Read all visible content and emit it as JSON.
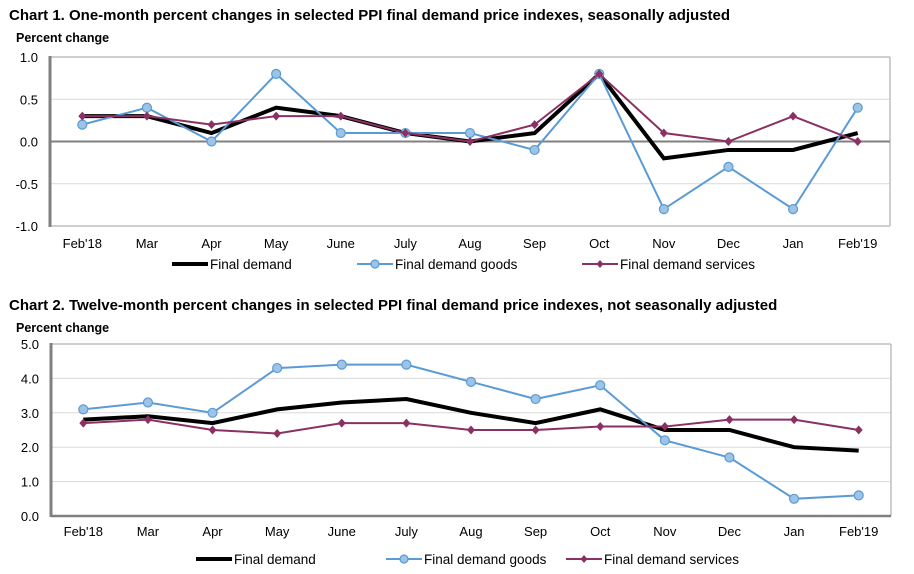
{
  "chart_data": [
    {
      "type": "line",
      "title": "Chart 1. One-month percent changes in selected PPI final demand price indexes, seasonally adjusted",
      "ylabel": "Percent change",
      "xlabel": "",
      "ylim": [
        -1.0,
        1.0
      ],
      "yticks": [
        "1.0",
        "0.5",
        "0.0",
        "-0.5",
        "-1.0"
      ],
      "ytick_values": [
        1.0,
        0.5,
        0.0,
        -0.5,
        -1.0
      ],
      "grid": true,
      "legend": "bottom",
      "categories": [
        "Feb'18",
        "Mar",
        "Apr",
        "May",
        "June",
        "July",
        "Aug",
        "Sep",
        "Oct",
        "Nov",
        "Dec",
        "Jan",
        "Feb'19"
      ],
      "series": [
        {
          "name": "Final demand",
          "color": "#000000",
          "marker": "none",
          "values": [
            0.3,
            0.3,
            0.1,
            0.4,
            0.3,
            0.1,
            0.0,
            0.1,
            0.8,
            -0.2,
            -0.1,
            -0.1,
            0.1
          ]
        },
        {
          "name": "Final demand goods",
          "color": "#5b9bd5",
          "marker": "circle",
          "values": [
            0.2,
            0.4,
            0.0,
            0.8,
            0.1,
            0.1,
            0.1,
            -0.1,
            0.8,
            -0.8,
            -0.3,
            -0.8,
            0.4
          ]
        },
        {
          "name": "Final demand services",
          "color": "#8b3063",
          "marker": "diamond",
          "values": [
            0.3,
            0.3,
            0.2,
            0.3,
            0.3,
            0.1,
            0.0,
            0.2,
            0.8,
            0.1,
            0.0,
            0.3,
            0.0
          ]
        }
      ]
    },
    {
      "type": "line",
      "title": "Chart 2. Twelve-month percent changes in selected PPI final demand price indexes, not seasonally adjusted",
      "ylabel": "Percent change",
      "xlabel": "",
      "ylim": [
        0.0,
        5.0
      ],
      "yticks": [
        "5.0",
        "4.0",
        "3.0",
        "2.0",
        "1.0",
        "0.0"
      ],
      "ytick_values": [
        5.0,
        4.0,
        3.0,
        2.0,
        1.0,
        0.0
      ],
      "grid": true,
      "legend": "bottom",
      "categories": [
        "Feb'18",
        "Mar",
        "Apr",
        "May",
        "June",
        "July",
        "Aug",
        "Sep",
        "Oct",
        "Nov",
        "Dec",
        "Jan",
        "Feb'19"
      ],
      "series": [
        {
          "name": "Final demand",
          "color": "#000000",
          "marker": "none",
          "values": [
            2.8,
            2.9,
            2.7,
            3.1,
            3.3,
            3.4,
            3.0,
            2.7,
            3.1,
            2.5,
            2.5,
            2.0,
            1.9
          ]
        },
        {
          "name": "Final demand goods",
          "color": "#5b9bd5",
          "marker": "circle",
          "values": [
            3.1,
            3.3,
            3.0,
            4.3,
            4.4,
            4.4,
            3.9,
            3.4,
            3.8,
            2.2,
            1.7,
            0.5,
            0.6
          ]
        },
        {
          "name": "Final demand services",
          "color": "#8b3063",
          "marker": "diamond",
          "values": [
            2.7,
            2.8,
            2.5,
            2.4,
            2.7,
            2.7,
            2.5,
            2.5,
            2.6,
            2.6,
            2.8,
            2.8,
            2.5
          ]
        }
      ]
    }
  ]
}
